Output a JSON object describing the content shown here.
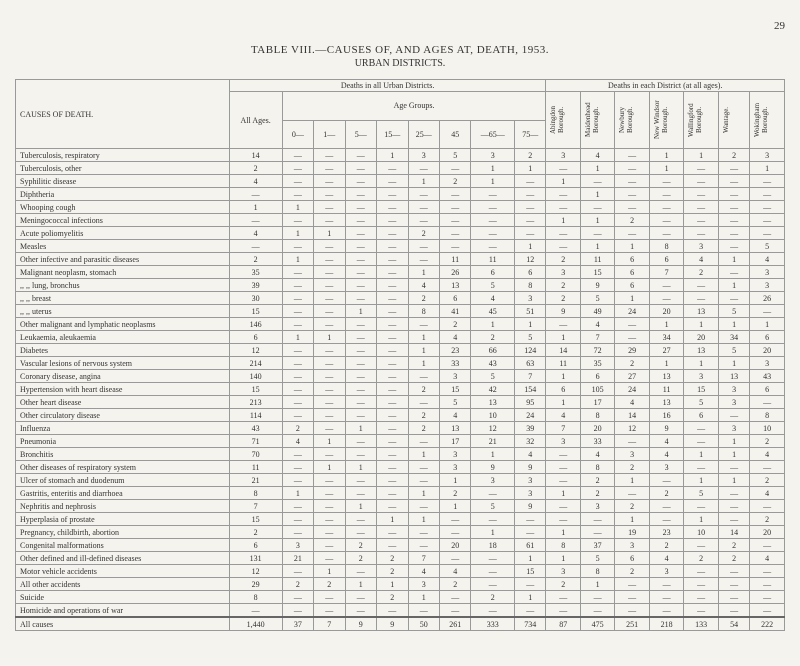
{
  "page_number": "29",
  "table_title": "TABLE VIII.—CAUSES OF, AND AGES AT, DEATH, 1953.",
  "table_subtitle": "URBAN DISTRICTS.",
  "causes_header": "CAUSES OF DEATH.",
  "section1_header": "Deaths in all Urban Districts.",
  "section2_header": "Deaths in each District (at all ages).",
  "age_groups_label": "Age Groups.",
  "all_ages_label": "All Ages.",
  "age_cols": [
    "0—",
    "1—",
    "5—",
    "15—",
    "25—",
    "45",
    "—65—",
    "75—"
  ],
  "district_cols": [
    "Abingdon Borough.",
    "Maidenhead Borough.",
    "Newbury Borough.",
    "New Windsor Borough.",
    "Wallingford Borough.",
    "Wantage.",
    "Wokingham Borough."
  ],
  "rows": [
    {
      "cause": "Tuberculosis, respiratory",
      "all": "14",
      "ages": [
        "—",
        "—",
        "—",
        "1",
        "3",
        "5",
        "3",
        "2"
      ],
      "districts": [
        "3",
        "4",
        "—",
        "1",
        "1",
        "2",
        "3"
      ]
    },
    {
      "cause": "Tuberculosis, other",
      "all": "2",
      "ages": [
        "—",
        "—",
        "—",
        "—",
        "—",
        "—",
        "1",
        "1"
      ],
      "districts": [
        "—",
        "1",
        "—",
        "1",
        "—",
        "—",
        "1"
      ]
    },
    {
      "cause": "Syphilitic disease",
      "all": "4",
      "ages": [
        "—",
        "—",
        "—",
        "—",
        "1",
        "2",
        "1",
        "—"
      ],
      "districts": [
        "1",
        "—",
        "—",
        "—",
        "—",
        "—",
        "—"
      ]
    },
    {
      "cause": "Diphtheria",
      "all": "—",
      "ages": [
        "—",
        "—",
        "—",
        "—",
        "—",
        "—",
        "—",
        "—"
      ],
      "districts": [
        "—",
        "1",
        "—",
        "—",
        "—",
        "—",
        "—"
      ]
    },
    {
      "cause": "Whooping cough",
      "all": "1",
      "ages": [
        "1",
        "—",
        "—",
        "—",
        "—",
        "—",
        "—",
        "—"
      ],
      "districts": [
        "—",
        "—",
        "—",
        "—",
        "—",
        "—",
        "—"
      ]
    },
    {
      "cause": "Meningococcal infections",
      "all": "—",
      "ages": [
        "—",
        "—",
        "—",
        "—",
        "—",
        "—",
        "—",
        "—"
      ],
      "districts": [
        "1",
        "1",
        "2",
        "—",
        "—",
        "—",
        "—"
      ]
    },
    {
      "cause": "Acute poliomyelitis",
      "all": "4",
      "ages": [
        "1",
        "1",
        "—",
        "—",
        "2",
        "—",
        "—",
        "—"
      ],
      "districts": [
        "—",
        "—",
        "—",
        "—",
        "—",
        "—",
        "—"
      ]
    },
    {
      "cause": "Measles",
      "all": "—",
      "ages": [
        "—",
        "—",
        "—",
        "—",
        "—",
        "—",
        "—",
        "1"
      ],
      "districts": [
        "—",
        "1",
        "1",
        "8",
        "3",
        "—",
        "5"
      ]
    },
    {
      "cause": "Other infective and parasitic diseases",
      "all": "2",
      "ages": [
        "1",
        "—",
        "—",
        "—",
        "—",
        "11",
        "11",
        "12"
      ],
      "districts": [
        "2",
        "11",
        "6",
        "6",
        "4",
        "1",
        "4"
      ]
    },
    {
      "cause": "Malignant neoplasm, stomach",
      "all": "35",
      "ages": [
        "—",
        "—",
        "—",
        "—",
        "1",
        "26",
        "6",
        "6"
      ],
      "districts": [
        "3",
        "15",
        "6",
        "7",
        "2",
        "—",
        "3"
      ]
    },
    {
      "cause": "    ,,    ,,    lung, bronchus",
      "all": "39",
      "ages": [
        "—",
        "—",
        "—",
        "—",
        "4",
        "13",
        "5",
        "8"
      ],
      "districts": [
        "2",
        "9",
        "6",
        "—",
        "—",
        "1",
        "3"
      ]
    },
    {
      "cause": "    ,,    ,,    breast",
      "all": "30",
      "ages": [
        "—",
        "—",
        "—",
        "—",
        "2",
        "6",
        "4",
        "3"
      ],
      "districts": [
        "2",
        "5",
        "1",
        "—",
        "—",
        "—",
        "26"
      ]
    },
    {
      "cause": "    ,,    ,,    uterus",
      "all": "15",
      "ages": [
        "—",
        "—",
        "1",
        "—",
        "8",
        "41",
        "45",
        "51"
      ],
      "districts": [
        "9",
        "49",
        "24",
        "20",
        "13",
        "5",
        "—"
      ]
    },
    {
      "cause": "Other malignant and lymphatic neoplasms",
      "all": "146",
      "ages": [
        "—",
        "—",
        "—",
        "—",
        "—",
        "2",
        "1",
        "1"
      ],
      "districts": [
        "—",
        "4",
        "—",
        "1",
        "1",
        "1",
        "1"
      ]
    },
    {
      "cause": "Leukaemia, aleukaemia",
      "all": "6",
      "ages": [
        "1",
        "1",
        "—",
        "—",
        "1",
        "4",
        "2",
        "5"
      ],
      "districts": [
        "1",
        "7",
        "—",
        "34",
        "20",
        "34",
        "6"
      ]
    },
    {
      "cause": "Diabetes",
      "all": "12",
      "ages": [
        "—",
        "—",
        "—",
        "—",
        "1",
        "23",
        "66",
        "124"
      ],
      "districts": [
        "14",
        "72",
        "29",
        "27",
        "13",
        "5",
        "20"
      ]
    },
    {
      "cause": "Vascular lesions of nervous system",
      "all": "214",
      "ages": [
        "—",
        "—",
        "—",
        "—",
        "1",
        "33",
        "43",
        "63"
      ],
      "districts": [
        "11",
        "35",
        "2",
        "1",
        "1",
        "1",
        "3"
      ]
    },
    {
      "cause": "Coronary disease, angina",
      "all": "140",
      "ages": [
        "—",
        "—",
        "—",
        "—",
        "—",
        "3",
        "5",
        "7"
      ],
      "districts": [
        "1",
        "6",
        "27",
        "13",
        "3",
        "13",
        "43"
      ]
    },
    {
      "cause": "Hypertension with heart disease",
      "all": "15",
      "ages": [
        "—",
        "—",
        "—",
        "—",
        "2",
        "15",
        "42",
        "154"
      ],
      "districts": [
        "6",
        "105",
        "24",
        "11",
        "15",
        "3",
        "6"
      ]
    },
    {
      "cause": "Other heart disease",
      "all": "213",
      "ages": [
        "—",
        "—",
        "—",
        "—",
        "—",
        "5",
        "13",
        "95"
      ],
      "districts": [
        "1",
        "17",
        "4",
        "13",
        "5",
        "3",
        "—"
      ]
    },
    {
      "cause": "Other circulatory disease",
      "all": "114",
      "ages": [
        "—",
        "—",
        "—",
        "—",
        "2",
        "4",
        "10",
        "24"
      ],
      "districts": [
        "4",
        "8",
        "14",
        "16",
        "6",
        "—",
        "8"
      ]
    },
    {
      "cause": "Influenza",
      "all": "43",
      "ages": [
        "2",
        "—",
        "1",
        "—",
        "2",
        "13",
        "12",
        "39"
      ],
      "districts": [
        "7",
        "20",
        "12",
        "9",
        "—",
        "3",
        "10"
      ]
    },
    {
      "cause": "Pneumonia",
      "all": "71",
      "ages": [
        "4",
        "1",
        "—",
        "—",
        "—",
        "17",
        "21",
        "32"
      ],
      "districts": [
        "3",
        "33",
        "—",
        "4",
        "—",
        "1",
        "2"
      ]
    },
    {
      "cause": "Bronchitis",
      "all": "70",
      "ages": [
        "—",
        "—",
        "—",
        "—",
        "1",
        "3",
        "1",
        "4"
      ],
      "districts": [
        "—",
        "4",
        "3",
        "4",
        "1",
        "1",
        "4"
      ]
    },
    {
      "cause": "Other diseases of respiratory system",
      "all": "11",
      "ages": [
        "—",
        "1",
        "1",
        "—",
        "—",
        "3",
        "9",
        "9"
      ],
      "districts": [
        "—",
        "8",
        "2",
        "3",
        "—",
        "—",
        "—"
      ]
    },
    {
      "cause": "Ulcer of stomach and duodenum",
      "all": "21",
      "ages": [
        "—",
        "—",
        "—",
        "—",
        "—",
        "1",
        "3",
        "3"
      ],
      "districts": [
        "—",
        "2",
        "1",
        "—",
        "1",
        "1",
        "2"
      ]
    },
    {
      "cause": "Gastritis, enteritis and diarrhoea",
      "all": "8",
      "ages": [
        "1",
        "—",
        "—",
        "—",
        "1",
        "2",
        "—",
        "3"
      ],
      "districts": [
        "1",
        "2",
        "—",
        "2",
        "5",
        "—",
        "4"
      ]
    },
    {
      "cause": "Nephritis and nephrosis",
      "all": "7",
      "ages": [
        "—",
        "—",
        "1",
        "—",
        "—",
        "1",
        "5",
        "9"
      ],
      "districts": [
        "—",
        "3",
        "2",
        "—",
        "—",
        "—",
        "—"
      ]
    },
    {
      "cause": "Hyperplasia of prostate",
      "all": "15",
      "ages": [
        "—",
        "—",
        "—",
        "1",
        "1",
        "—",
        "—",
        "—"
      ],
      "districts": [
        "—",
        "—",
        "1",
        "—",
        "1",
        "—",
        "2"
      ]
    },
    {
      "cause": "Pregnancy, childbirth, abortion",
      "all": "2",
      "ages": [
        "—",
        "—",
        "—",
        "—",
        "—",
        "—",
        "1",
        "—"
      ],
      "districts": [
        "1",
        "—",
        "19",
        "23",
        "10",
        "14",
        "20"
      ]
    },
    {
      "cause": "Congenital malformations",
      "all": "6",
      "ages": [
        "3",
        "—",
        "2",
        "—",
        "—",
        "20",
        "18",
        "61"
      ],
      "districts": [
        "8",
        "37",
        "3",
        "2",
        "—",
        "2",
        "—"
      ]
    },
    {
      "cause": "Other defined and ill-defined diseases",
      "all": "131",
      "ages": [
        "21",
        "—",
        "2",
        "2",
        "7",
        "—",
        "—",
        "1"
      ],
      "districts": [
        "1",
        "5",
        "6",
        "4",
        "2",
        "2",
        "4"
      ]
    },
    {
      "cause": "Motor vehicle accidents",
      "all": "12",
      "ages": [
        "—",
        "1",
        "—",
        "2",
        "4",
        "4",
        "—",
        "15"
      ],
      "districts": [
        "3",
        "8",
        "2",
        "3",
        "—",
        "—",
        "—"
      ]
    },
    {
      "cause": "All other accidents",
      "all": "29",
      "ages": [
        "2",
        "2",
        "1",
        "1",
        "3",
        "2",
        "—",
        "—"
      ],
      "districts": [
        "2",
        "1",
        "—",
        "—",
        "—",
        "—",
        "—"
      ]
    },
    {
      "cause": "Suicide",
      "all": "8",
      "ages": [
        "—",
        "—",
        "—",
        "2",
        "1",
        "—",
        "2",
        "1"
      ],
      "districts": [
        "—",
        "—",
        "—",
        "—",
        "—",
        "—",
        "—"
      ]
    },
    {
      "cause": "Homicide and operations of war",
      "all": "—",
      "ages": [
        "—",
        "—",
        "—",
        "—",
        "—",
        "—",
        "—",
        "—"
      ],
      "districts": [
        "—",
        "—",
        "—",
        "—",
        "—",
        "—",
        "—"
      ]
    }
  ],
  "total_row": {
    "cause": "All causes",
    "all": "1,440",
    "ages": [
      "37",
      "7",
      "9",
      "9",
      "50",
      "261",
      "333",
      "734"
    ],
    "districts": [
      "87",
      "475",
      "251",
      "218",
      "133",
      "54",
      "222"
    ]
  }
}
